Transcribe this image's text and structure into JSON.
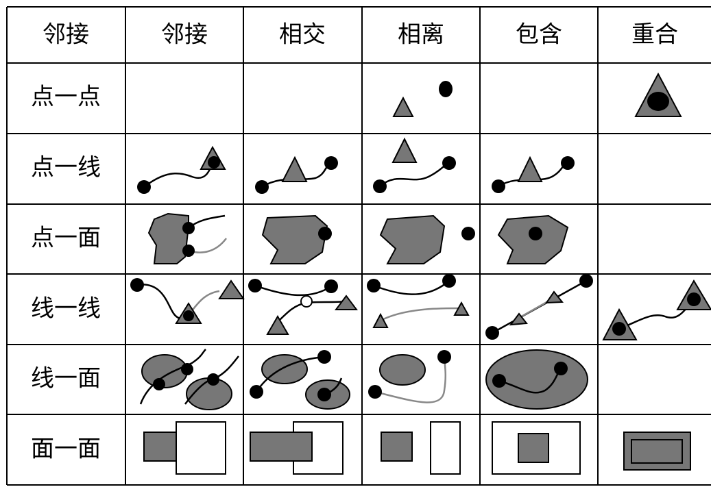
{
  "table": {
    "header": [
      "邻接",
      "邻接",
      "相交",
      "相离",
      "包含",
      "重合"
    ],
    "row_labels": [
      "点一点",
      "点一线",
      "点一面",
      "线一线",
      "线一面",
      "面一面"
    ]
  }
}
